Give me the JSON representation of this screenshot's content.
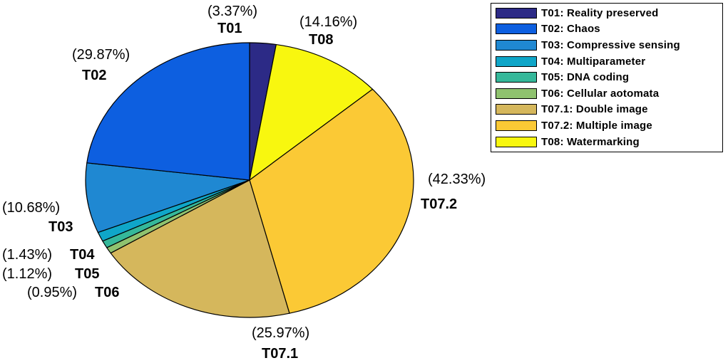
{
  "chart_data": {
    "type": "pie",
    "title": "",
    "legend_position": "top-right",
    "slices": [
      {
        "code": "T01",
        "label": "T01: Reality preserved",
        "value": 3.37,
        "pct_label": "(3.37%)",
        "color": "#2c2a86"
      },
      {
        "code": "T02",
        "label": "T02: Chaos",
        "value": 29.87,
        "pct_label": "(29.87%)",
        "color": "#0d5fe0"
      },
      {
        "code": "T03",
        "label": "T03: Compressive sensing",
        "value": 10.68,
        "pct_label": "(10.68%)",
        "color": "#1f88d2"
      },
      {
        "code": "T04",
        "label": "T04: Multiparameter",
        "value": 1.43,
        "pct_label": "(1.43%)",
        "color": "#0fa6c8"
      },
      {
        "code": "T05",
        "label": "T05: DNA coding",
        "value": 1.12,
        "pct_label": "(1.12%)",
        "color": "#35b89a"
      },
      {
        "code": "T06",
        "label": "T06: Cellular aotomata",
        "value": 0.95,
        "pct_label": "(0.95%)",
        "color": "#8fc26f"
      },
      {
        "code": "T07.1",
        "label": "T07.1: Double image",
        "value": 25.97,
        "pct_label": "(25.97%)",
        "color": "#d5b75c"
      },
      {
        "code": "T07.2",
        "label": "T07.2: Multiple image",
        "value": 42.33,
        "pct_label": "(42.33%)",
        "color": "#fbc935"
      },
      {
        "code": "T08",
        "label": "T08: Watermarking",
        "value": 14.16,
        "pct_label": "(14.16%)",
        "color": "#f8f70f"
      }
    ]
  }
}
